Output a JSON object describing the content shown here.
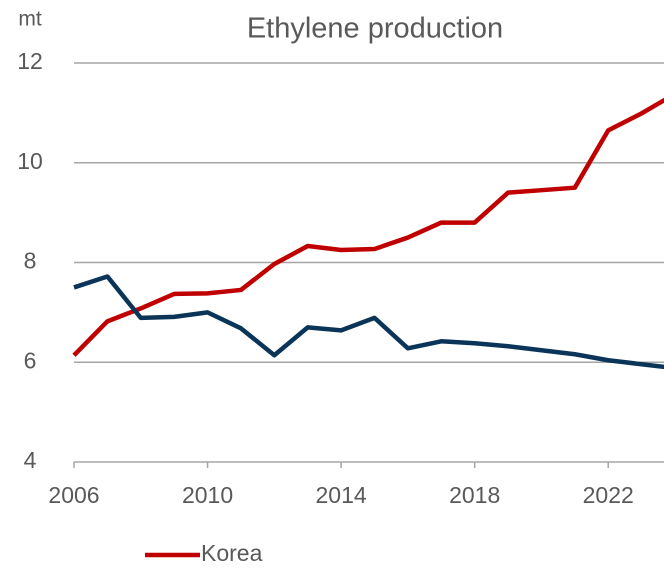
{
  "chart_data": {
    "type": "line",
    "title": "Ethylene production",
    "y_label": "mt",
    "x": [
      2006,
      2007,
      2008,
      2009,
      2010,
      2011,
      2012,
      2013,
      2014,
      2015,
      2016,
      2017,
      2018,
      2019,
      2020,
      2021,
      2022,
      2023,
      2024
    ],
    "series": [
      {
        "name": "Korea",
        "color": "#c00000",
        "values": [
          6.14,
          6.82,
          7.08,
          7.37,
          7.38,
          7.45,
          7.97,
          8.33,
          8.25,
          8.27,
          8.5,
          8.8,
          8.8,
          9.4,
          9.45,
          9.5,
          10.65,
          10.99,
          11.38
        ]
      },
      {
        "color": "#0b3558",
        "values": [
          7.5,
          7.72,
          6.89,
          6.91,
          7.0,
          6.68,
          6.14,
          6.7,
          6.64,
          6.89,
          6.28,
          6.42,
          6.38,
          6.32,
          6.24,
          6.16,
          6.04,
          5.96,
          5.88
        ]
      }
    ],
    "xlim": [
      2006,
      2024
    ],
    "xticks": [
      2006,
      2010,
      2014,
      2018,
      2022
    ],
    "ylim": [
      4,
      12
    ],
    "yticks": [
      4,
      6,
      8,
      10,
      12
    ],
    "grid": true,
    "legend": "bottom"
  }
}
